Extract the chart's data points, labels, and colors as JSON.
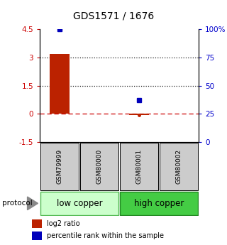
{
  "title": "GDS1571 / 1676",
  "samples": [
    "GSM79999",
    "GSM80000",
    "GSM80001",
    "GSM80002"
  ],
  "log2_ratio": [
    3.2,
    0.0,
    -0.05,
    0.0
  ],
  "percentile_rank": [
    100,
    null,
    37,
    null
  ],
  "ylim_left": [
    -1.5,
    4.5
  ],
  "ylim_right": [
    0,
    100
  ],
  "yticks_left": [
    -1.5,
    0,
    1.5,
    3,
    4.5
  ],
  "ytick_labels_left": [
    "-1.5",
    "0",
    "1.5",
    "3",
    "4.5"
  ],
  "yticks_right": [
    0,
    25,
    50,
    75,
    100
  ],
  "ytick_labels_right": [
    "0",
    "25",
    "50",
    "75",
    "100%"
  ],
  "hlines": [
    0.0,
    1.5,
    3.0
  ],
  "hline_styles": [
    "dashdot_red",
    "dotted",
    "dotted"
  ],
  "hline_colors": [
    "#cc0000",
    "#222222",
    "#222222"
  ],
  "bar_color": "#bb2200",
  "dot_color": "#0000bb",
  "groups": [
    {
      "label": "low copper",
      "samples": [
        0,
        1
      ],
      "color": "#ccffcc",
      "border_color": "#55bb55"
    },
    {
      "label": "high copper",
      "samples": [
        2,
        3
      ],
      "color": "#44cc44",
      "border_color": "#228822"
    }
  ],
  "sample_box_color": "#cccccc",
  "protocol_label": "protocol",
  "legend_red_label": "log2 ratio",
  "legend_blue_label": "percentile rank within the sample",
  "title_fontsize": 10,
  "tick_fontsize": 7.5,
  "sample_fontsize": 6.5,
  "group_fontsize": 8.5
}
